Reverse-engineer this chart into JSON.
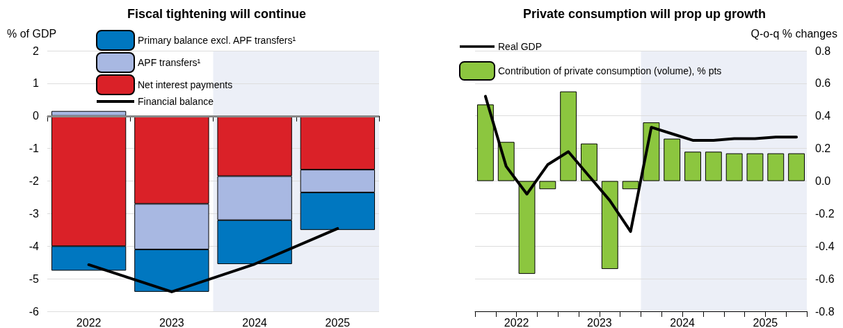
{
  "chart_data": [
    {
      "type": "bar",
      "title": "Fiscal tightening will continue",
      "ylabel": "% of GDP",
      "categories": [
        "2022",
        "2023",
        "2024",
        "2025"
      ],
      "stacked": true,
      "series": [
        {
          "name": "Net interest payments",
          "color": "#da2128",
          "values": [
            -4.0,
            -2.7,
            -1.85,
            -1.65
          ]
        },
        {
          "name": "APF transfers¹",
          "color": "#a8b8e2",
          "values": [
            0.15,
            -1.4,
            -1.35,
            -0.7
          ]
        },
        {
          "name": "Primary balance excl. APF transfers¹",
          "color": "#0077c0",
          "values": [
            -0.75,
            -1.3,
            -1.35,
            -1.15
          ]
        },
        {
          "name": "Financial balance",
          "type": "line",
          "color": "#000000",
          "values": [
            -4.57,
            -5.4,
            -4.55,
            -3.46
          ]
        }
      ],
      "ylim": [
        -6,
        2
      ],
      "yticks": [
        -6,
        -5,
        -4,
        -3,
        -2,
        -1,
        0,
        1,
        2
      ],
      "grid": "y",
      "legend": "top left",
      "marker": "none",
      "ref_lines": [
        {
          "axis": "y",
          "value": 0,
          "color": "#888888"
        }
      ],
      "bands": [
        {
          "axis": "x",
          "from": "2024",
          "to": "2025",
          "color": "#eceff7"
        }
      ]
    },
    {
      "type": "bar",
      "title": "Private consumption will prop up growth",
      "ylabel": "Q-o-q % changes",
      "x": [
        2022.125,
        2022.375,
        2022.625,
        2022.875,
        2023.125,
        2023.375,
        2023.625,
        2023.875,
        2024.125,
        2024.375,
        2024.625,
        2024.875,
        2025.125,
        2025.375,
        2025.625,
        2025.875
      ],
      "series": [
        {
          "name": "Real GDP",
          "type": "line",
          "color": "#000000",
          "values": [
            0.52,
            0.09,
            -0.08,
            0.1,
            0.18,
            0.03,
            -0.12,
            -0.31,
            0.33,
            0.29,
            0.25,
            0.25,
            0.26,
            0.26,
            0.27,
            0.27
          ]
        },
        {
          "name": "Contribution of private consumption (volume), % pts",
          "color": "#8cc63f",
          "values": [
            0.47,
            0.24,
            -0.57,
            -0.05,
            0.55,
            0.23,
            -0.54,
            -0.05,
            0.36,
            0.26,
            0.18,
            0.18,
            0.17,
            0.17,
            0.17,
            0.17
          ]
        }
      ],
      "xlim": [
        2022,
        2026
      ],
      "xticks": [
        {
          "value": 2022,
          "label": null
        },
        {
          "value": 2022.25,
          "label": null
        },
        {
          "value": 2022.5,
          "label": "2022"
        },
        {
          "value": 2022.75,
          "label": null
        },
        {
          "value": 2023,
          "label": null
        },
        {
          "value": 2023.25,
          "label": null
        },
        {
          "value": 2023.5,
          "label": "2023"
        },
        {
          "value": 2023.75,
          "label": null
        },
        {
          "value": 2024,
          "label": null
        },
        {
          "value": 2024.25,
          "label": null
        },
        {
          "value": 2024.5,
          "label": "2024"
        },
        {
          "value": 2024.75,
          "label": null
        },
        {
          "value": 2025,
          "label": null
        },
        {
          "value": 2025.25,
          "label": null
        },
        {
          "value": 2025.5,
          "label": "2025"
        },
        {
          "value": 2025.75,
          "label": null
        },
        {
          "value": 2026,
          "label": null
        }
      ],
      "ylim": [
        -0.8,
        0.8
      ],
      "yticks": [
        -0.8,
        -0.6,
        -0.4,
        -0.2,
        {
          "value": 0,
          "label": "0.0"
        },
        0.2,
        0.4,
        0.6,
        0.8
      ],
      "grid": "y",
      "legend": "top left",
      "marker": "none",
      "bands": [
        {
          "axis": "x",
          "from": 2024,
          "to": 2026,
          "color": "#eceff7"
        }
      ]
    }
  ]
}
